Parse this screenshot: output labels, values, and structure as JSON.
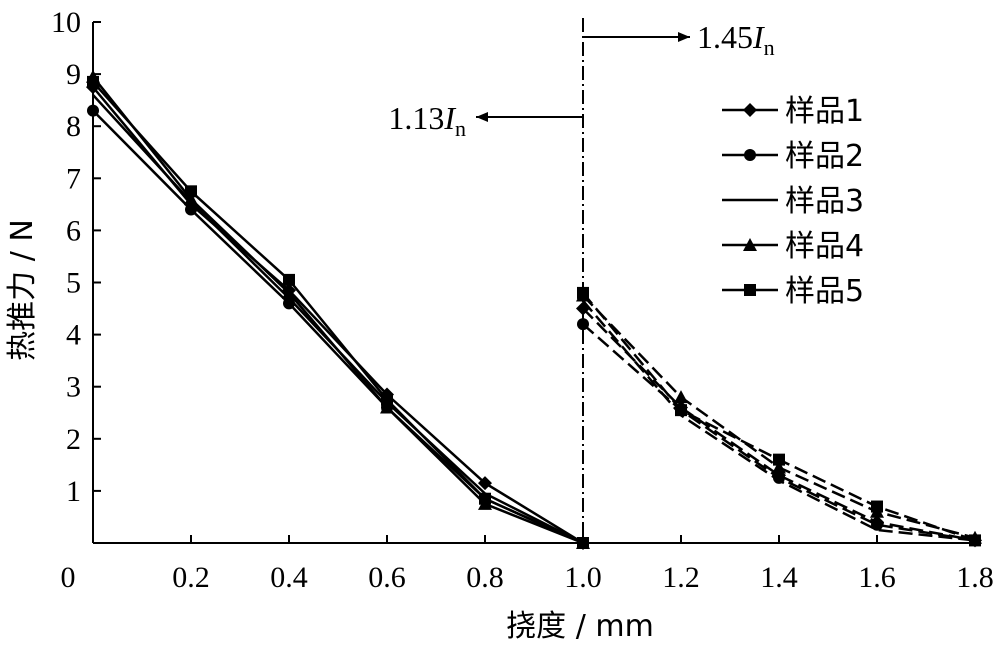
{
  "chart_data": {
    "type": "line",
    "xlabel": "挠度 / mm",
    "ylabel": "热推力 / N",
    "xlim": [
      0,
      1.8
    ],
    "ylim": [
      0,
      10
    ],
    "x_ticks": [
      "0",
      "0.2",
      "0.4",
      "0.6",
      "0.8",
      "1.0",
      "1.2",
      "1.4",
      "1.6",
      "1.8"
    ],
    "y_ticks": [
      "1",
      "2",
      "3",
      "4",
      "5",
      "6",
      "7",
      "8",
      "9",
      "10"
    ],
    "grid": false,
    "legend_position": "top-right",
    "annotations": [
      {
        "base": "1.13",
        "italic": "I",
        "sub": "n",
        "direction": "left"
      },
      {
        "base": "1.45",
        "italic": "I",
        "sub": "n",
        "direction": "right"
      }
    ],
    "divider_x": 1.0,
    "series": [
      {
        "name": "样品1",
        "marker": "diamond",
        "x": [
          0,
          0.2,
          0.4,
          0.6,
          0.8,
          1.0
        ],
        "values": [
          8.75,
          6.5,
          4.85,
          2.85,
          1.15,
          0.0
        ],
        "x2": [
          1.0,
          1.2,
          1.4,
          1.6,
          1.8
        ],
        "values2": [
          4.5,
          2.6,
          1.3,
          0.4,
          0.05
        ]
      },
      {
        "name": "样品2",
        "marker": "circle",
        "x": [
          0,
          0.2,
          0.4,
          0.6,
          0.8,
          1.0
        ],
        "values": [
          8.3,
          6.4,
          4.6,
          2.6,
          0.85,
          0.0
        ],
        "x2": [
          1.0,
          1.2,
          1.4,
          1.6,
          1.8
        ],
        "values2": [
          4.2,
          2.55,
          1.25,
          0.35,
          0.05
        ]
      },
      {
        "name": "样品3",
        "marker": "none",
        "x": [
          0,
          0.2,
          0.4,
          0.6,
          0.8,
          1.0
        ],
        "values": [
          8.6,
          6.55,
          4.7,
          2.7,
          0.95,
          0.0
        ],
        "x2": [
          1.0,
          1.2,
          1.4,
          1.6,
          1.8
        ],
        "values2": [
          4.65,
          2.45,
          1.2,
          0.25,
          0.05
        ]
      },
      {
        "name": "样品4",
        "marker": "triangle",
        "x": [
          0,
          0.2,
          0.4,
          0.6,
          0.8,
          1.0
        ],
        "values": [
          8.95,
          6.6,
          4.8,
          2.6,
          0.75,
          0.0
        ],
        "x2": [
          1.0,
          1.2,
          1.4,
          1.6,
          1.8
        ],
        "values2": [
          4.75,
          2.8,
          1.45,
          0.6,
          0.1
        ]
      },
      {
        "name": "样品5",
        "marker": "square",
        "x": [
          0,
          0.2,
          0.4,
          0.6,
          0.8,
          1.0
        ],
        "values": [
          8.85,
          6.75,
          5.05,
          2.75,
          0.85,
          0.0
        ],
        "x2": [
          1.0,
          1.2,
          1.4,
          1.6,
          1.8
        ],
        "values2": [
          4.8,
          2.55,
          1.6,
          0.7,
          0.05
        ]
      }
    ]
  }
}
